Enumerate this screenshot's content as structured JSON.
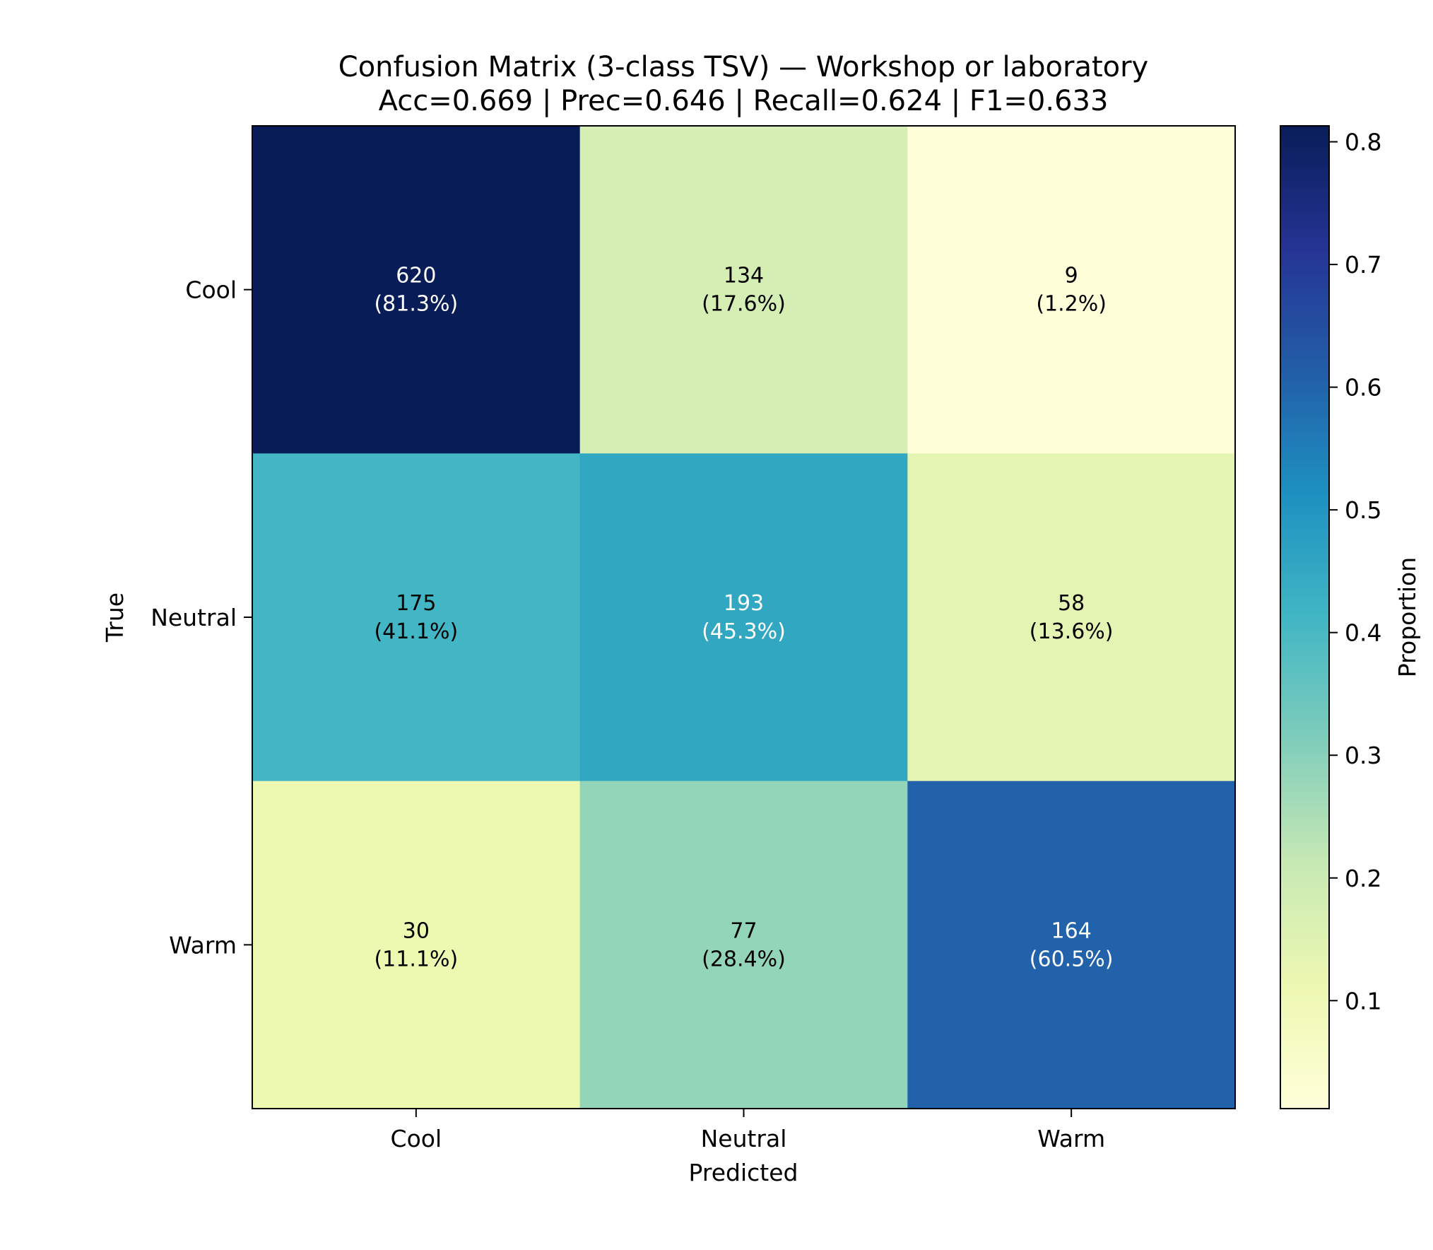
{
  "chart_data": {
    "type": "heatmap",
    "title": "Confusion Matrix (3-class TSV) — Workshop or laboratory",
    "subtitle": "Acc=0.669 | Prec=0.646 | Recall=0.624 | F1=0.633",
    "xlabel": "Predicted",
    "ylabel": "True",
    "x_categories": [
      "Cool",
      "Neutral",
      "Warm"
    ],
    "y_categories": [
      "Cool",
      "Neutral",
      "Warm"
    ],
    "counts": [
      [
        620,
        134,
        9
      ],
      [
        175,
        193,
        58
      ],
      [
        30,
        77,
        164
      ]
    ],
    "percent_labels": [
      [
        "(81.3%)",
        "(17.6%)",
        "(1.2%)"
      ],
      [
        "(41.1%)",
        "(45.3%)",
        "(13.6%)"
      ],
      [
        "(11.1%)",
        "(28.4%)",
        "(60.5%)"
      ]
    ],
    "proportions": [
      [
        0.813,
        0.176,
        0.012
      ],
      [
        0.411,
        0.453,
        0.136
      ],
      [
        0.111,
        0.284,
        0.605
      ]
    ],
    "colorbar": {
      "label": "Proportion",
      "range": [
        0.012,
        0.813
      ],
      "ticks": [
        0.1,
        0.2,
        0.3,
        0.4,
        0.5,
        0.6,
        0.7,
        0.8
      ],
      "tick_labels": [
        "0.1",
        "0.2",
        "0.3",
        "0.4",
        "0.5",
        "0.6",
        "0.7",
        "0.8"
      ],
      "colormap": "YlGnBu"
    },
    "colors": {
      "text_light": "#ffffff",
      "text_dark": "#000000"
    }
  }
}
